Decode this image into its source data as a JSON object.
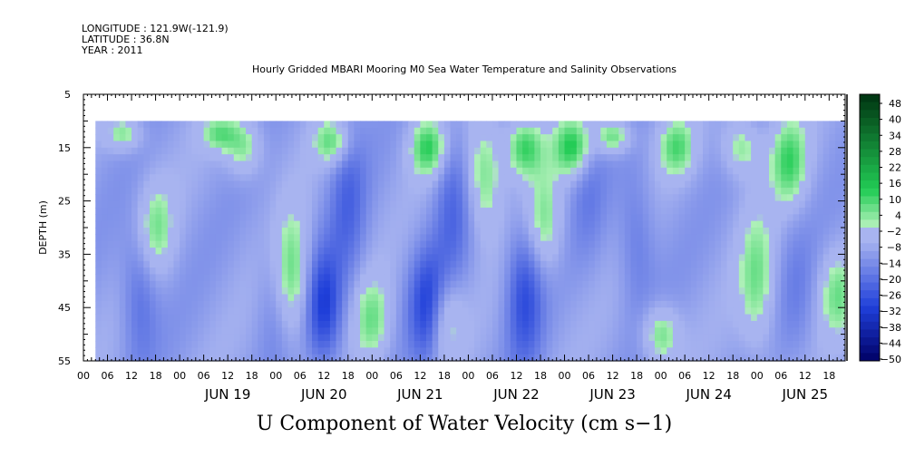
{
  "header": {
    "longitude": "LONGITUDE : 121.9W(-121.9)",
    "latitude": "LATITUDE : 36.8N",
    "year": "YEAR : 2011",
    "title": "Hourly Gridded MBARI Mooring M0 Sea Water Temperature and Salinity Observations"
  },
  "chart_data": {
    "type": "heatmap",
    "title": "Hourly Gridded MBARI Mooring M0 Sea Water Temperature and Salinity Observations",
    "xlabel": "U Component of Water Velocity (cm s−1)",
    "ylabel": "DEPTH (m)",
    "variable": "U Component of Water Velocity (cm s−1)",
    "x_axis": {
      "range": [
        "2011-06-18 00:00",
        "2011-06-25 22:00"
      ],
      "hour_tick_labels": [
        "00",
        "06",
        "12",
        "18",
        "00",
        "06",
        "12",
        "18",
        "00",
        "06",
        "12",
        "18",
        "00",
        "06",
        "12",
        "18",
        "00",
        "06",
        "12",
        "18",
        "00",
        "06",
        "12",
        "18",
        "00",
        "06",
        "12",
        "18",
        "00",
        "06",
        "12",
        "18"
      ],
      "date_labels": [
        "JUN 19",
        "JUN 20",
        "JUN 21",
        "JUN 22",
        "JUN 23",
        "JUN 24",
        "JUN 25"
      ],
      "data_start": "2011-06-18 03:00"
    },
    "y_axis": {
      "range": [
        5,
        55
      ],
      "inverted": true,
      "tick_labels": [
        "5",
        "15",
        "25",
        "35",
        "45",
        "55"
      ],
      "data_top_depth": 10
    },
    "colorbar": {
      "labels": [
        "48",
        "40",
        "34",
        "28",
        "22",
        "16",
        "10",
        "4",
        "−2",
        "−8",
        "−14",
        "−20",
        "−26",
        "−32",
        "−38",
        "−44",
        "−50"
      ],
      "range": [
        -50,
        50
      ],
      "colors": {
        "strong_negative": "#000066",
        "negative": "#1f3fd9",
        "weak_negative": "#a8b4f0",
        "weak_positive": "#aef0b8",
        "positive": "#22cc55",
        "strong_positive": "#003311"
      }
    },
    "positive_events": [
      {
        "t": "2011-06-18 10:00",
        "z": [
          10,
          15
        ],
        "u": 6
      },
      {
        "t": "2011-06-18 18:00",
        "z": [
          22,
          38
        ],
        "u": 5
      },
      {
        "t": "2011-06-19 10:00",
        "z": [
          10,
          15
        ],
        "u": 6
      },
      {
        "t": "2011-06-19 16:00",
        "z": [
          10,
          20
        ],
        "u": 6
      },
      {
        "t": "2011-06-20 04:00",
        "z": [
          28,
          50
        ],
        "u": 10
      },
      {
        "t": "2011-06-20 14:00",
        "z": [
          10,
          18
        ],
        "u": 8
      },
      {
        "t": "2011-06-21 00:00",
        "z": [
          40,
          55
        ],
        "u": 6
      },
      {
        "t": "2011-06-21 14:00",
        "z": [
          10,
          20
        ],
        "u": 12
      },
      {
        "t": "2011-06-21 18:00",
        "z": [
          40,
          55
        ],
        "u": 6
      },
      {
        "t": "2011-06-22 04:00",
        "z": [
          10,
          30
        ],
        "u": 8
      },
      {
        "t": "2011-06-22 14:00",
        "z": [
          10,
          20
        ],
        "u": 12
      },
      {
        "t": "2011-06-22 19:00",
        "z": [
          20,
          38
        ],
        "u": 5
      },
      {
        "t": "2011-06-23 02:00",
        "z": [
          10,
          20
        ],
        "u": 14
      },
      {
        "t": "2011-06-23 12:00",
        "z": [
          10,
          16
        ],
        "u": 10
      },
      {
        "t": "2011-06-24 00:00",
        "z": [
          45,
          55
        ],
        "u": 8
      },
      {
        "t": "2011-06-24 04:00",
        "z": [
          10,
          20
        ],
        "u": 8
      },
      {
        "t": "2011-06-24 20:00",
        "z": [
          10,
          20
        ],
        "u": 6
      },
      {
        "t": "2011-06-25 00:00",
        "z": [
          28,
          52
        ],
        "u": 6
      },
      {
        "t": "2011-06-25 08:00",
        "z": [
          10,
          25
        ],
        "u": 10
      },
      {
        "t": "2011-06-25 20:00",
        "z": [
          35,
          50
        ],
        "u": 5
      }
    ],
    "negative_events": [
      {
        "t": "2011-06-18 14:00",
        "z": [
          30,
          55
        ],
        "u": -20
      },
      {
        "t": "2011-06-20 00:00",
        "z": [
          30,
          55
        ],
        "u": -15
      },
      {
        "t": "2011-06-20 12:00",
        "z": [
          35,
          55
        ],
        "u": -30
      },
      {
        "t": "2011-06-20 18:00",
        "z": [
          10,
          40
        ],
        "u": -20
      },
      {
        "t": "2011-06-21 14:00",
        "z": [
          35,
          55
        ],
        "u": -30
      },
      {
        "t": "2011-06-21 20:00",
        "z": [
          10,
          40
        ],
        "u": -20
      },
      {
        "t": "2011-06-22 14:00",
        "z": [
          30,
          55
        ],
        "u": -26
      },
      {
        "t": "2011-06-23 06:00",
        "z": [
          10,
          35
        ],
        "u": -15
      },
      {
        "t": "2011-06-23 18:00",
        "z": [
          20,
          45
        ],
        "u": -18
      },
      {
        "t": "2011-06-25 10:00",
        "z": [
          30,
          55
        ],
        "u": -14
      }
    ]
  }
}
